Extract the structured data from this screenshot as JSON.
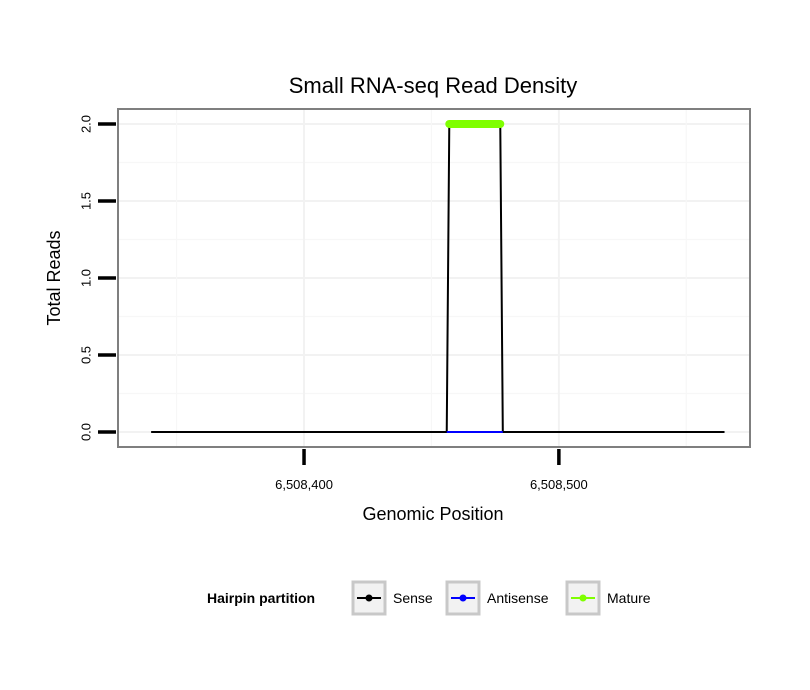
{
  "chart_data": {
    "type": "line",
    "title": "Small RNA-seq Read Density",
    "xlabel": "Genomic Position",
    "ylabel": "Total Reads",
    "xlim": [
      6508327,
      6508575
    ],
    "ylim": [
      0,
      2
    ],
    "x_ticks": [
      6508400,
      6508500
    ],
    "x_tick_labels": [
      "6,508,400",
      "6,508,500"
    ],
    "y_ticks": [
      0,
      0.5,
      1,
      1.5,
      2
    ],
    "y_tick_labels": [
      "0.0",
      "0.5",
      "1.0",
      "1.5",
      "2.0"
    ],
    "grid": true,
    "series": [
      {
        "name": "Sense",
        "color": "#000000",
        "style": "line",
        "points": [
          {
            "x": 6508340,
            "y": 0
          },
          {
            "x": 6508456,
            "y": 0
          },
          {
            "x": 6508457,
            "y": 2
          },
          {
            "x": 6508477,
            "y": 2
          },
          {
            "x": 6508478,
            "y": 0
          },
          {
            "x": 6508565,
            "y": 0
          }
        ]
      },
      {
        "name": "Antisense",
        "color": "#0000ff",
        "style": "line",
        "points": [
          {
            "x": 6508456,
            "y": 0
          },
          {
            "x": 6508478,
            "y": 0
          }
        ]
      },
      {
        "name": "Mature",
        "color": "#7fff00",
        "style": "thick",
        "points": [
          {
            "x": 6508457,
            "y": 2
          },
          {
            "x": 6508477,
            "y": 2
          }
        ]
      }
    ],
    "legend": {
      "title": "Hairpin partition",
      "position": "bottom",
      "entries": [
        {
          "label": "Sense",
          "color": "#000000"
        },
        {
          "label": "Antisense",
          "color": "#0000ff"
        },
        {
          "label": "Mature",
          "color": "#7fff00"
        }
      ]
    }
  }
}
